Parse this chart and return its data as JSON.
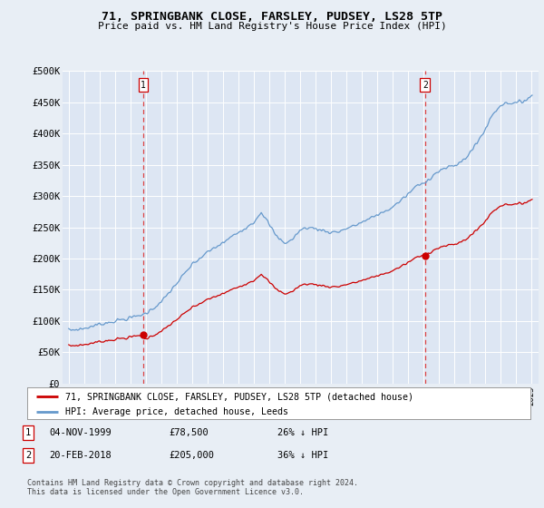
{
  "title": "71, SPRINGBANK CLOSE, FARSLEY, PUDSEY, LS28 5TP",
  "subtitle": "Price paid vs. HM Land Registry's House Price Index (HPI)",
  "background_color": "#e8eef5",
  "plot_bg_color": "#dde6f3",
  "grid_color": "#ffffff",
  "sale1_date": 1999.84,
  "sale1_price": 78500,
  "sale2_date": 2018.13,
  "sale2_price": 205000,
  "legend_entry1": "71, SPRINGBANK CLOSE, FARSLEY, PUDSEY, LS28 5TP (detached house)",
  "legend_entry2": "HPI: Average price, detached house, Leeds",
  "footnote": "Contains HM Land Registry data © Crown copyright and database right 2024.\nThis data is licensed under the Open Government Licence v3.0.",
  "red_color": "#cc0000",
  "blue_color": "#6699cc",
  "ylim_min": 0,
  "ylim_max": 500000,
  "xmin": 1994.6,
  "xmax": 2025.5,
  "hpi_keypoints": [
    [
      1995.0,
      85000
    ],
    [
      1996.0,
      88000
    ],
    [
      1997.0,
      95000
    ],
    [
      1998.0,
      100000
    ],
    [
      1999.0,
      105000
    ],
    [
      2000.0,
      112000
    ],
    [
      2001.0,
      130000
    ],
    [
      2002.0,
      160000
    ],
    [
      2003.0,
      190000
    ],
    [
      2004.0,
      210000
    ],
    [
      2005.0,
      225000
    ],
    [
      2006.0,
      242000
    ],
    [
      2007.0,
      258000
    ],
    [
      2007.5,
      275000
    ],
    [
      2008.0,
      255000
    ],
    [
      2008.5,
      235000
    ],
    [
      2009.0,
      225000
    ],
    [
      2009.5,
      230000
    ],
    [
      2010.0,
      245000
    ],
    [
      2010.5,
      250000
    ],
    [
      2011.0,
      248000
    ],
    [
      2011.5,
      245000
    ],
    [
      2012.0,
      242000
    ],
    [
      2012.5,
      243000
    ],
    [
      2013.0,
      248000
    ],
    [
      2013.5,
      252000
    ],
    [
      2014.0,
      258000
    ],
    [
      2014.5,
      263000
    ],
    [
      2015.0,
      270000
    ],
    [
      2015.5,
      275000
    ],
    [
      2016.0,
      282000
    ],
    [
      2016.5,
      292000
    ],
    [
      2017.0,
      302000
    ],
    [
      2017.5,
      315000
    ],
    [
      2018.0,
      320000
    ],
    [
      2018.5,
      330000
    ],
    [
      2019.0,
      340000
    ],
    [
      2019.5,
      345000
    ],
    [
      2020.0,
      348000
    ],
    [
      2020.5,
      355000
    ],
    [
      2021.0,
      368000
    ],
    [
      2021.5,
      385000
    ],
    [
      2022.0,
      405000
    ],
    [
      2022.5,
      430000
    ],
    [
      2023.0,
      445000
    ],
    [
      2023.5,
      450000
    ],
    [
      2024.0,
      448000
    ],
    [
      2024.5,
      452000
    ],
    [
      2025.0,
      460000
    ]
  ]
}
